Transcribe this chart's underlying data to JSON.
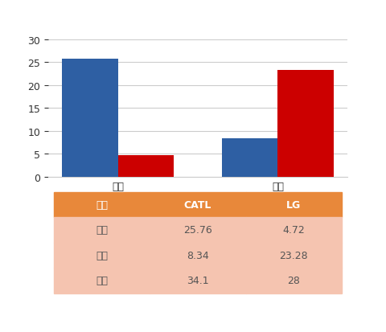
{
  "categories": [
    "中国",
    "欧美"
  ],
  "catl_values": [
    25.76,
    8.34
  ],
  "lg_values": [
    4.72,
    23.28
  ],
  "catl_color": "#2E5FA3",
  "lg_color": "#CC0000",
  "ylim": [
    0,
    30
  ],
  "yticks": [
    0,
    5,
    10,
    15,
    20,
    25,
    30
  ],
  "bar_width": 0.35,
  "legend_labels": [
    "CATL",
    "LG"
  ],
  "table_headers": [
    "分项",
    "CATL",
    "LG"
  ],
  "table_rows": [
    [
      "中国",
      "25.76",
      "4.72"
    ],
    [
      "欧美",
      "8.34",
      "23.28"
    ],
    [
      "总量",
      "34.1",
      "28"
    ]
  ],
  "header_bg": "#E8883A",
  "row_bg": "#F5C4B0",
  "header_text_color": "#FFFFFF",
  "row_text_color": "#555555",
  "bg_color": "#FFFFFF",
  "grid_color": "#CCCCCC"
}
